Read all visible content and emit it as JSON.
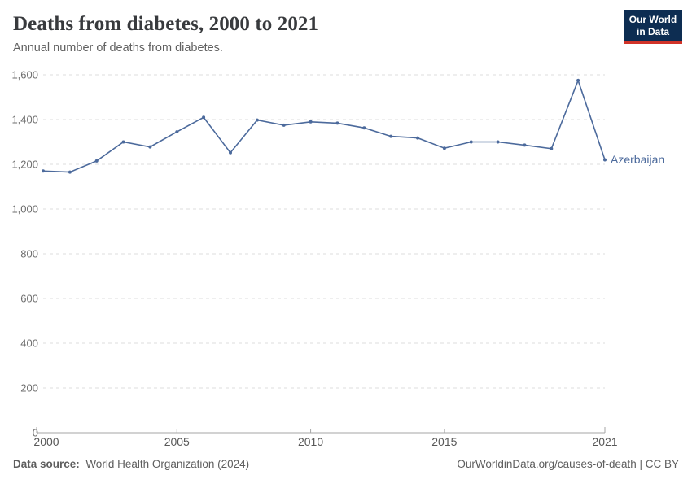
{
  "header": {
    "title": "Deaths from diabetes, 2000 to 2021",
    "subtitle": "Annual number of deaths from diabetes.",
    "logo": {
      "line1": "Our World",
      "line2": "in Data",
      "bg_color": "#0d2d52",
      "accent_color": "#d13328"
    }
  },
  "chart_data": {
    "type": "line",
    "title": "Deaths from diabetes, 2000 to 2021",
    "subtitle": "Annual number of deaths from diabetes.",
    "xlabel": "",
    "ylabel": "",
    "grid": "horizontal-dashed",
    "legend_position": "end-of-line-label",
    "xlim": [
      2000,
      2021
    ],
    "ylim": [
      0,
      1600
    ],
    "x_ticks": [
      2000,
      2005,
      2010,
      2015,
      2021
    ],
    "y_ticks": [
      0,
      200,
      400,
      600,
      800,
      1000,
      1200,
      1400,
      1600
    ],
    "series": [
      {
        "name": "Azerbaijan",
        "color": "#4C6A9C",
        "x": [
          2000,
          2001,
          2002,
          2003,
          2004,
          2005,
          2006,
          2007,
          2008,
          2009,
          2010,
          2011,
          2012,
          2013,
          2014,
          2015,
          2016,
          2017,
          2018,
          2019,
          2020,
          2021
        ],
        "values": [
          1170,
          1165,
          1215,
          1300,
          1278,
          1345,
          1410,
          1252,
          1398,
          1375,
          1390,
          1384,
          1363,
          1325,
          1318,
          1272,
          1300,
          1300,
          1286,
          1270,
          1575,
          1220
        ]
      }
    ]
  },
  "footer": {
    "source_label": "Data source:",
    "source_value": "World Health Organization (2024)",
    "link": "OurWorldinData.org/causes-of-death | CC BY"
  }
}
